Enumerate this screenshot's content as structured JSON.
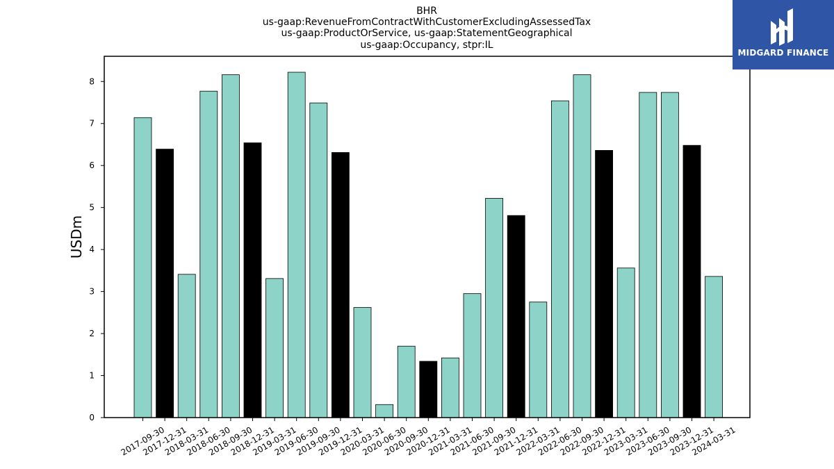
{
  "chart_data": {
    "type": "bar",
    "title": [
      "BHR",
      "us-gaap:RevenueFromContractWithCustomerExcludingAssessedTax",
      "us-gaap:ProductOrService, us-gaap:StatementGeographical",
      "us-gaap:Occupancy, stpr:IL"
    ],
    "ylabel": "USDm",
    "xlabel": "",
    "ylim": [
      0,
      8.6
    ],
    "yticks": [
      "0",
      "1",
      "2",
      "3",
      "4",
      "5",
      "6",
      "7",
      "8"
    ],
    "grid": false,
    "categories": [
      "2017-09-30",
      "2017-12-31",
      "2018-03-31",
      "2018-06-30",
      "2018-09-30",
      "2018-12-31",
      "2019-03-31",
      "2019-06-30",
      "2019-09-30",
      "2019-12-31",
      "2020-03-31",
      "2020-06-30",
      "2020-09-30",
      "2020-12-31",
      "2021-03-31",
      "2021-06-30",
      "2021-09-30",
      "2021-12-31",
      "2022-03-31",
      "2022-06-30",
      "2022-09-30",
      "2022-12-31",
      "2023-03-31",
      "2023-06-30",
      "2023-09-30",
      "2023-12-31",
      "2024-03-31"
    ],
    "values": [
      7.14,
      6.39,
      3.41,
      7.77,
      8.16,
      6.54,
      3.31,
      8.22,
      7.49,
      6.31,
      2.62,
      0.31,
      1.7,
      1.34,
      1.42,
      2.95,
      5.22,
      4.81,
      2.75,
      7.54,
      8.16,
      6.36,
      3.56,
      7.74,
      7.74,
      6.48,
      3.36
    ],
    "colors": [
      "teal",
      "black",
      "teal",
      "teal",
      "teal",
      "black",
      "teal",
      "teal",
      "teal",
      "black",
      "teal",
      "teal",
      "teal",
      "black",
      "teal",
      "teal",
      "teal",
      "black",
      "teal",
      "teal",
      "teal",
      "black",
      "teal",
      "teal",
      "teal",
      "black",
      "teal"
    ],
    "palette": {
      "teal": "#8dd3c7",
      "black": "#000000",
      "edge": "#000000"
    }
  },
  "logo": {
    "text": "MIDGARD FINANCE",
    "background": "#2f56a6"
  }
}
